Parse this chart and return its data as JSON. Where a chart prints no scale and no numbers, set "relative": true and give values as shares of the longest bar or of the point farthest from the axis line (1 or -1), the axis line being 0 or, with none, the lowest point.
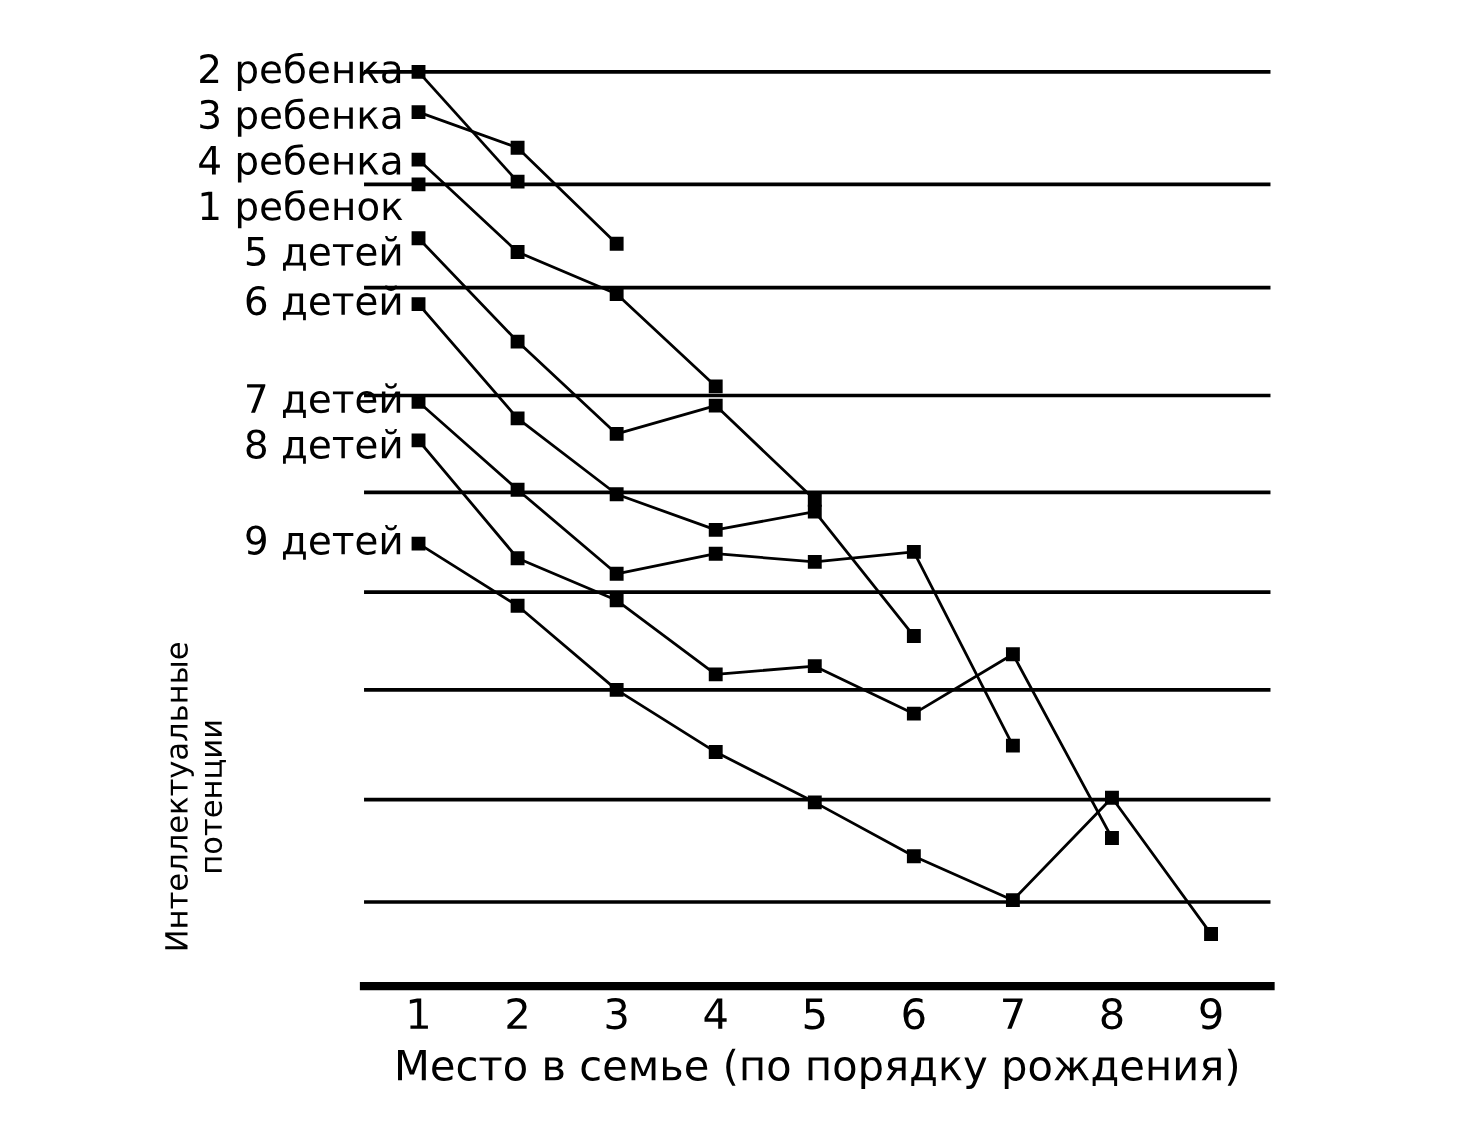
{
  "chart_data": {
    "type": "line",
    "relative": true,
    "xlabel": "Место в семье (по порядку рождения)",
    "ylabel": "Интеллектуальные\nпотенции",
    "xlim": [
      0.45,
      9.6
    ],
    "xticks": [
      1,
      2,
      3,
      4,
      5,
      6,
      7,
      8,
      9
    ],
    "marker": "square",
    "line_style": "solid",
    "legend": false,
    "grid": false,
    "tick_labels": "x",
    "ref_lines": [
      {
        "axis": "y",
        "value": 1.0,
        "color": "#000000"
      },
      {
        "axis": "y",
        "value": 0.877,
        "color": "#000000"
      },
      {
        "axis": "y",
        "value": 0.764,
        "color": "#000000"
      },
      {
        "axis": "y",
        "value": 0.646,
        "color": "#000000"
      },
      {
        "axis": "y",
        "value": 0.54,
        "color": "#000000"
      },
      {
        "axis": "y",
        "value": 0.431,
        "color": "#000000"
      },
      {
        "axis": "y",
        "value": 0.324,
        "color": "#000000"
      },
      {
        "axis": "y",
        "value": 0.204,
        "color": "#000000"
      },
      {
        "axis": "y",
        "value": 0.092,
        "color": "#000000"
      }
    ],
    "series": [
      {
        "name": "2 ребенка",
        "color": "#000000",
        "x": [
          1,
          2
        ],
        "values": [
          1.0,
          0.88
        ]
      },
      {
        "name": "3 ребенка",
        "color": "#000000",
        "x": [
          1,
          2,
          3
        ],
        "values": [
          0.956,
          0.917,
          0.812
        ]
      },
      {
        "name": "4 ребенка",
        "color": "#000000",
        "x": [
          1,
          2,
          3,
          4
        ],
        "values": [
          0.904,
          0.803,
          0.757,
          0.656
        ]
      },
      {
        "name": "1 ребенок",
        "color": "#000000",
        "x": [
          1
        ],
        "values": [
          0.877
        ]
      },
      {
        "name": "5 детей",
        "color": "#000000",
        "x": [
          1,
          2,
          3,
          4,
          5
        ],
        "values": [
          0.818,
          0.705,
          0.604,
          0.635,
          0.532
        ]
      },
      {
        "name": "6 детей",
        "color": "#000000",
        "x": [
          1,
          2,
          3,
          4,
          5,
          6
        ],
        "values": [
          0.746,
          0.621,
          0.538,
          0.499,
          0.519,
          0.383
        ]
      },
      {
        "name": "7 детей",
        "color": "#000000",
        "x": [
          1,
          2,
          3,
          4,
          5,
          6,
          7
        ],
        "values": [
          0.639,
          0.543,
          0.451,
          0.473,
          0.464,
          0.475,
          0.263
        ]
      },
      {
        "name": "8 детей",
        "color": "#000000",
        "x": [
          1,
          2,
          3,
          4,
          5,
          6,
          7,
          8
        ],
        "values": [
          0.597,
          0.468,
          0.422,
          0.341,
          0.35,
          0.298,
          0.363,
          0.162
        ]
      },
      {
        "name": "9 детей",
        "color": "#000000",
        "x": [
          1,
          2,
          3,
          4,
          5,
          6,
          7,
          8,
          9
        ],
        "values": [
          0.484,
          0.416,
          0.324,
          0.256,
          0.201,
          0.142,
          0.094,
          0.206,
          0.057
        ]
      }
    ]
  }
}
